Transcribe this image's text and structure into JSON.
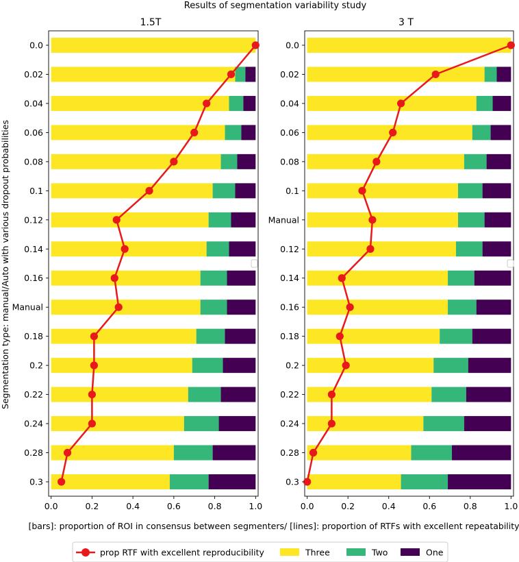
{
  "suptitle": "Results of segmentation variability study",
  "xlabel": "[bars]: proportion of ROI in consensus between segmenters/ [lines]: proportion of RTFs with excellent repeatability",
  "ylabel": "Segmentation type: manual/Auto with various dropout probabilities",
  "colors": {
    "three": "#fde725",
    "two": "#35b779",
    "one": "#440154",
    "line": "#e8191b"
  },
  "legend": {
    "line_label": "prop RTF with excellent reproducibility",
    "three_label": "Three",
    "two_label": "Two",
    "one_label": "One"
  },
  "chart_data": [
    {
      "type": "bar",
      "orientation": "horizontal-stacked",
      "title": "1.5T",
      "xlim": [
        0,
        1.0
      ],
      "xticks": [
        "0.0",
        "0.2",
        "0.4",
        "0.6",
        "0.8",
        "1.0"
      ],
      "categories": [
        "0.0",
        "0.02",
        "0.04",
        "0.06",
        "0.08",
        "0.1",
        "0.12",
        "0.14",
        "0.16",
        "Manual",
        "0.18",
        "0.2",
        "0.22",
        "0.24",
        "0.28",
        "0.3"
      ],
      "series": [
        {
          "name": "Three",
          "values": [
            1.0,
            0.9,
            0.87,
            0.85,
            0.83,
            0.79,
            0.77,
            0.76,
            0.73,
            0.73,
            0.71,
            0.69,
            0.67,
            0.65,
            0.6,
            0.58
          ]
        },
        {
          "name": "Two",
          "values": [
            0.0,
            0.05,
            0.07,
            0.08,
            0.08,
            0.11,
            0.11,
            0.11,
            0.13,
            0.13,
            0.14,
            0.15,
            0.16,
            0.17,
            0.19,
            0.19
          ]
        },
        {
          "name": "One",
          "values": [
            0.0,
            0.05,
            0.06,
            0.07,
            0.09,
            0.1,
            0.12,
            0.13,
            0.14,
            0.14,
            0.15,
            0.16,
            0.17,
            0.18,
            0.21,
            0.23
          ]
        }
      ],
      "line": {
        "name": "prop RTF with excellent reproducibility",
        "values": [
          1.0,
          0.88,
          0.76,
          0.7,
          0.6,
          0.48,
          0.32,
          0.36,
          0.31,
          0.33,
          0.21,
          0.21,
          0.2,
          0.2,
          0.08,
          0.05
        ]
      }
    },
    {
      "type": "bar",
      "orientation": "horizontal-stacked",
      "title": "3 T",
      "xlim": [
        0,
        1.0
      ],
      "xticks": [
        "0.0",
        "0.2",
        "0.4",
        "0.6",
        "0.8",
        "1.0"
      ],
      "categories": [
        "0.0",
        "0.02",
        "0.04",
        "0.06",
        "0.08",
        "0.1",
        "Manual",
        "0.12",
        "0.14",
        "0.16",
        "0.18",
        "0.2",
        "0.22",
        "0.24",
        "0.28",
        "0.3"
      ],
      "series": [
        {
          "name": "Three",
          "values": [
            1.0,
            0.87,
            0.83,
            0.81,
            0.77,
            0.74,
            0.74,
            0.73,
            0.69,
            0.69,
            0.65,
            0.62,
            0.61,
            0.57,
            0.51,
            0.46
          ]
        },
        {
          "name": "Two",
          "values": [
            0.0,
            0.06,
            0.08,
            0.09,
            0.11,
            0.12,
            0.13,
            0.13,
            0.13,
            0.14,
            0.16,
            0.17,
            0.17,
            0.2,
            0.2,
            0.23
          ]
        },
        {
          "name": "One",
          "values": [
            0.0,
            0.07,
            0.09,
            0.1,
            0.12,
            0.14,
            0.13,
            0.14,
            0.18,
            0.17,
            0.19,
            0.21,
            0.22,
            0.23,
            0.29,
            0.31
          ]
        }
      ],
      "line": {
        "name": "prop RTF with excellent reproducibility",
        "values": [
          1.0,
          0.63,
          0.46,
          0.42,
          0.34,
          0.27,
          0.32,
          0.31,
          0.17,
          0.21,
          0.16,
          0.19,
          0.12,
          0.12,
          0.03,
          0.0
        ]
      }
    }
  ]
}
